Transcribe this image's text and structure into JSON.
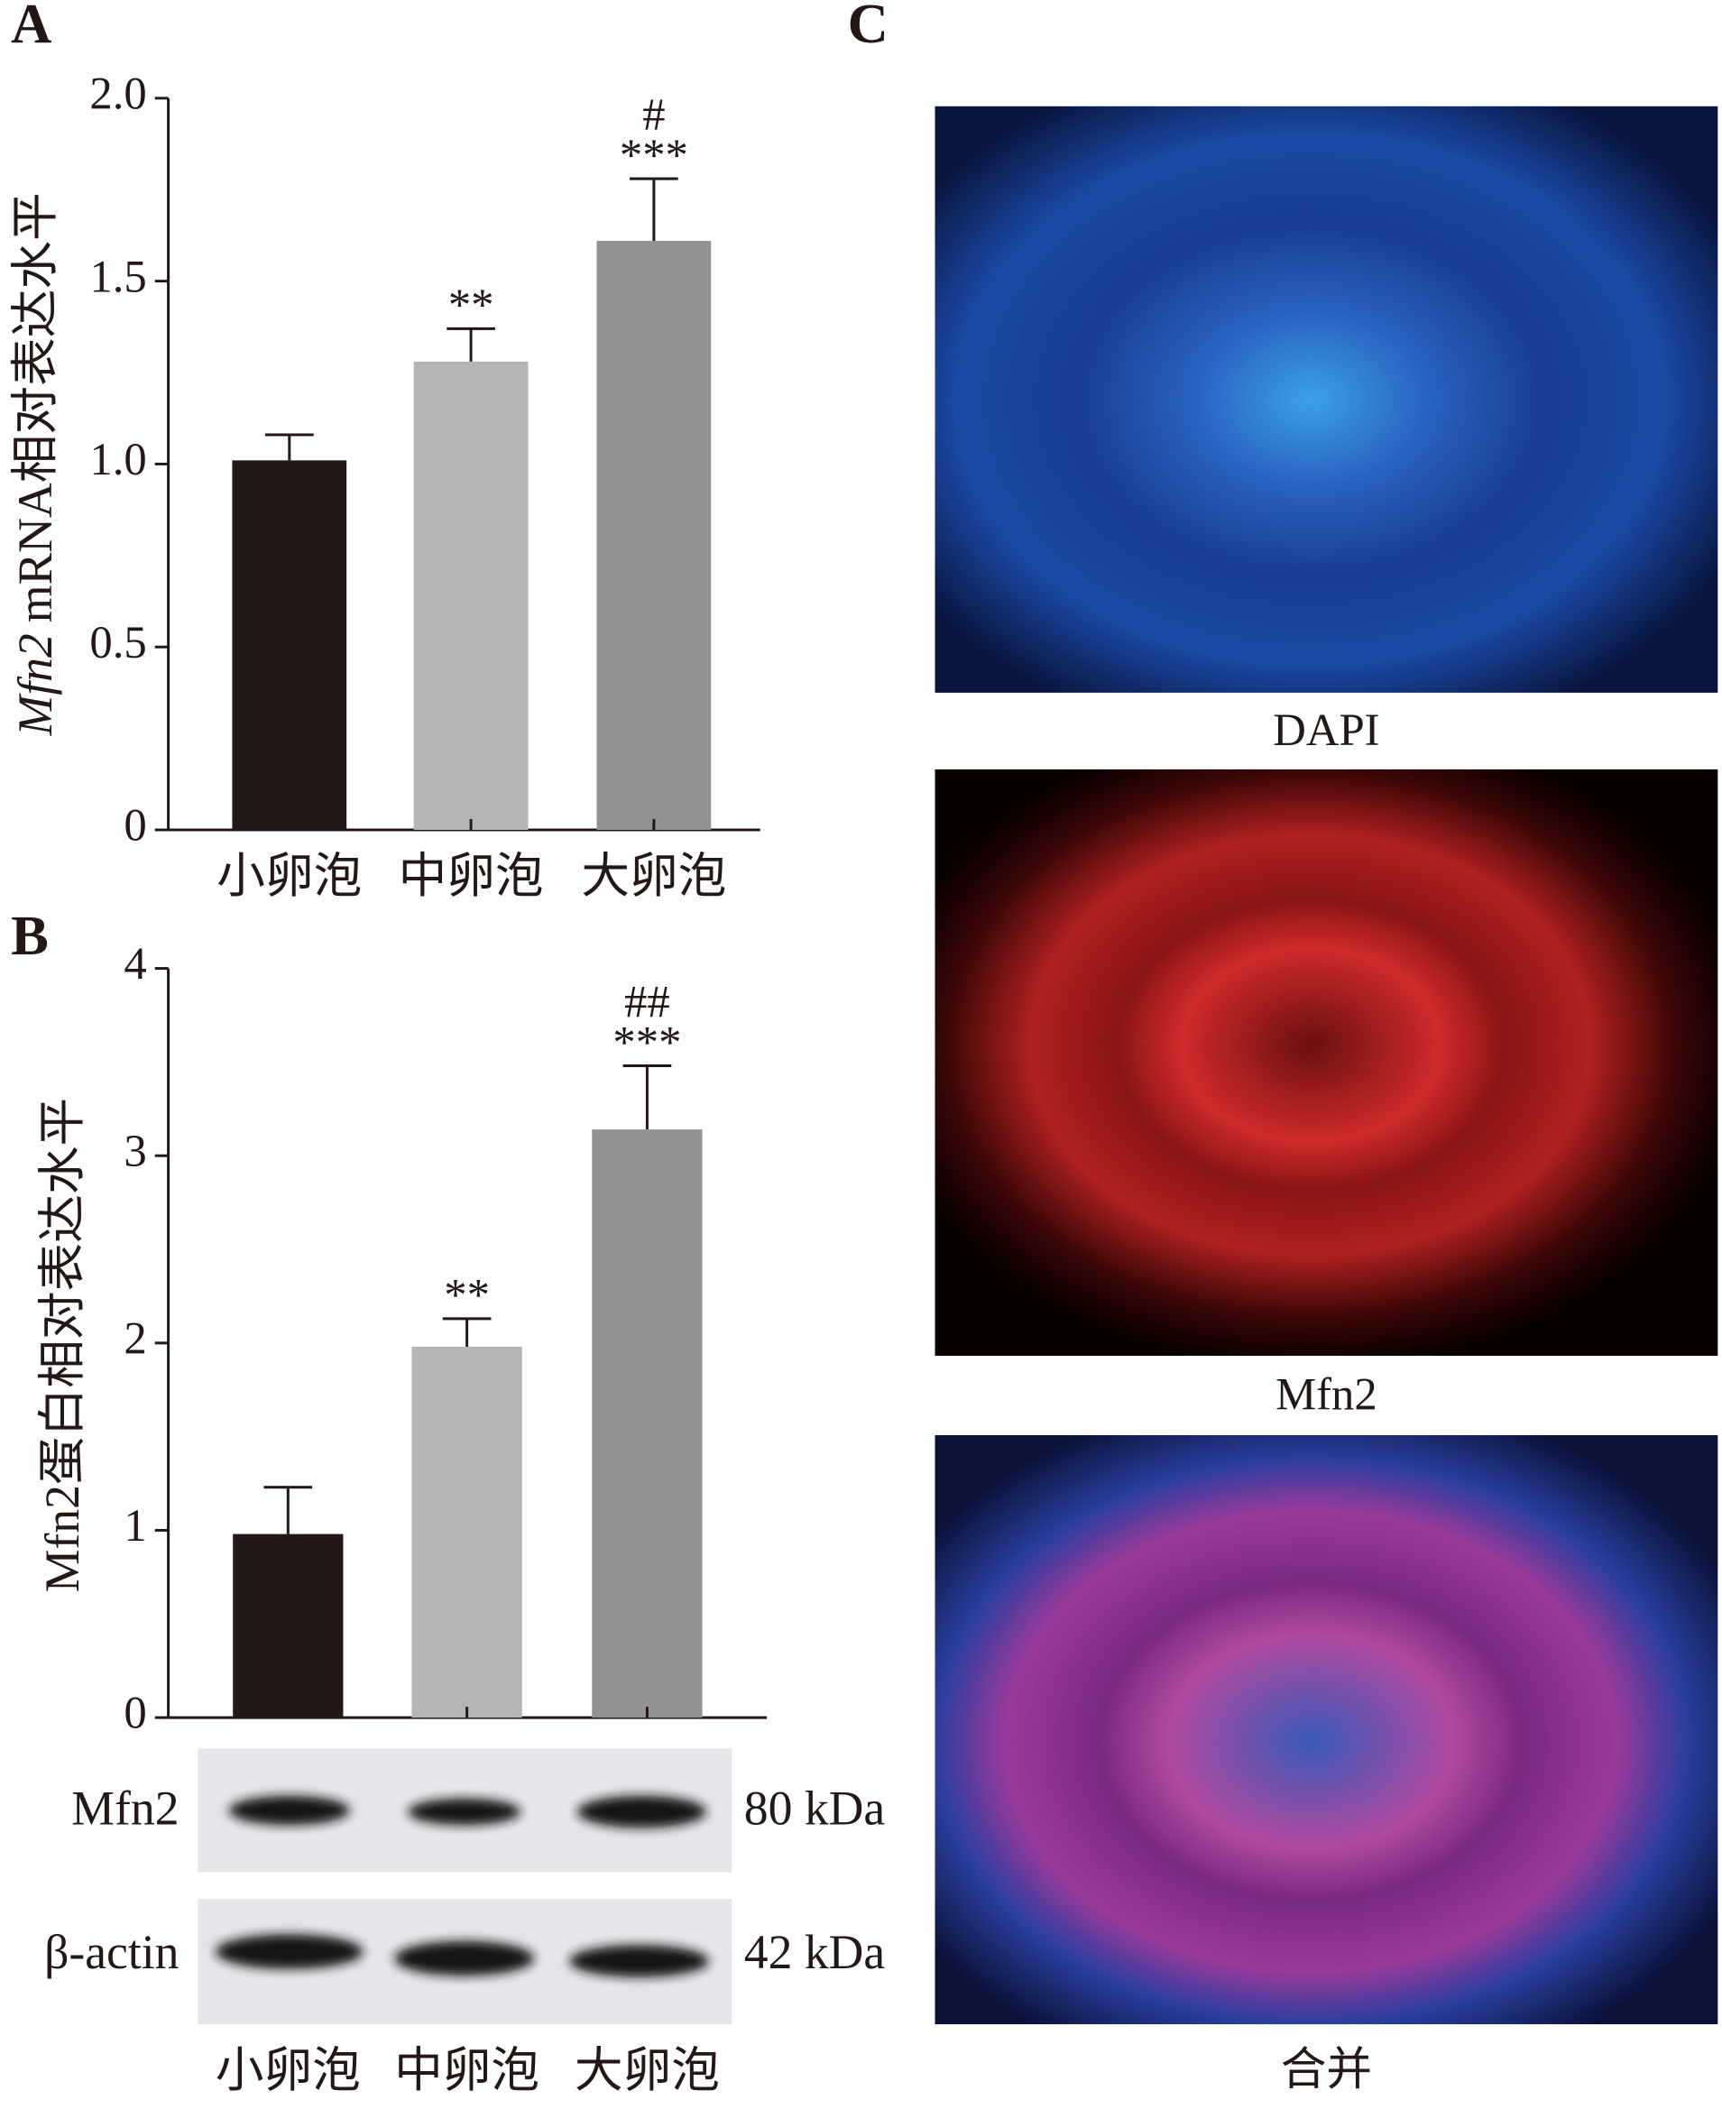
{
  "panel_labels": [
    "A",
    "B",
    "C"
  ],
  "chart_data": [
    {
      "type": "bar",
      "ylabel_italic": "Mfn2",
      "ylabel": "mRNA相对表达水平",
      "categories": [
        "小卵泡",
        "中卵泡",
        "大卵泡"
      ],
      "values": [
        1.01,
        1.28,
        1.61
      ],
      "errors": [
        0.07,
        0.09,
        0.17
      ],
      "colors": [
        "#231815",
        "#b5b5b6",
        "#929292"
      ],
      "annotations": [
        [],
        [
          "**"
        ],
        [
          "#",
          "***"
        ]
      ],
      "ylim": [
        0,
        2
      ],
      "yticks": [
        0,
        0.5,
        {
          "value": 1,
          "label": "1.0"
        },
        1.5,
        {
          "value": 2,
          "label": "2.0"
        }
      ]
    },
    {
      "type": "bar",
      "ylabel": "Mfn2蛋白相对表达水平",
      "categories": [
        "小卵泡",
        "中卵泡",
        "大卵泡"
      ],
      "values": [
        0.98,
        1.98,
        3.14
      ],
      "errors": [
        0.25,
        0.15,
        0.34
      ],
      "colors": [
        "#231815",
        "#b5b5b6",
        "#929292"
      ],
      "annotations": [
        [],
        [
          "**"
        ],
        [
          "##",
          "***"
        ]
      ],
      "ylim": [
        0,
        4
      ],
      "yticks": [
        0,
        1,
        2,
        3,
        4
      ]
    }
  ],
  "blot": {
    "rows": [
      {
        "label": "Mfn2",
        "size": "80 kDa"
      },
      {
        "label": "β-actin",
        "size": "42 kDa"
      }
    ]
  },
  "images": {
    "captions": [
      "DAPI",
      "Mfn2",
      "合并"
    ]
  }
}
